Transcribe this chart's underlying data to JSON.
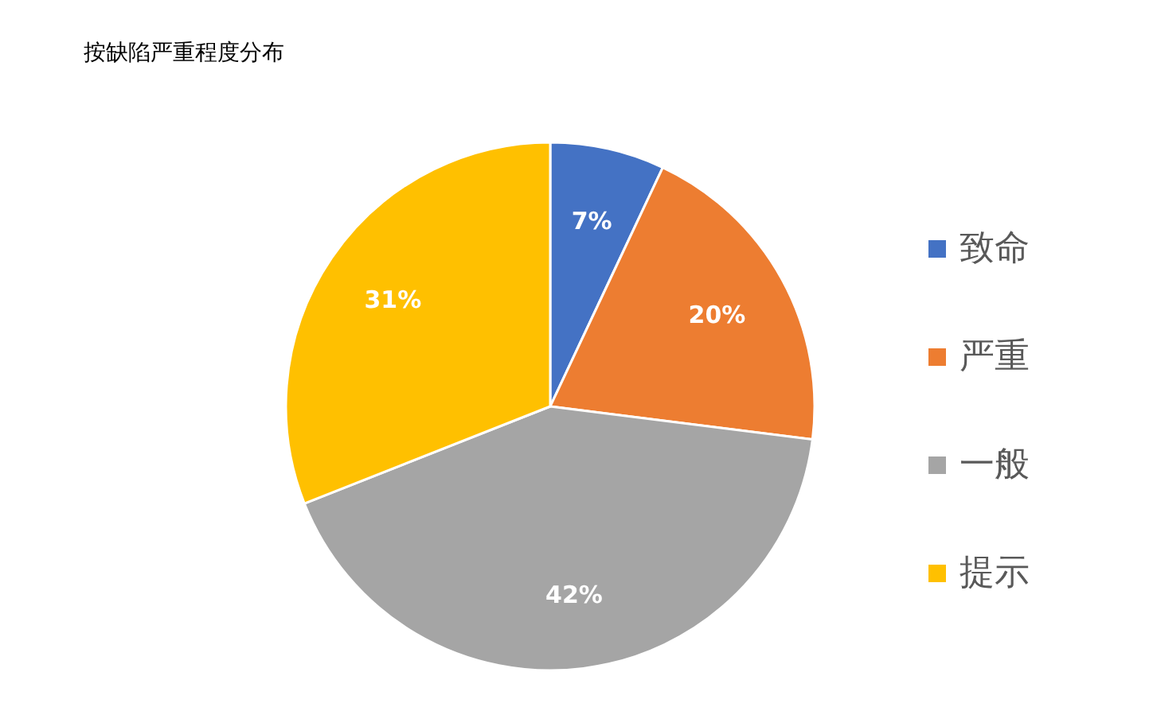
{
  "chart_data": {
    "type": "pie",
    "title": "按缺陷严重程度分布",
    "categories": [
      "致命",
      "严重",
      "一般",
      "提示"
    ],
    "values": [
      7,
      20,
      42,
      31
    ],
    "colors": [
      "#4472c4",
      "#ed7d31",
      "#a5a5a5",
      "#ffc000"
    ],
    "value_labels": [
      "7%",
      "20%",
      "42%",
      "31%"
    ],
    "legend": "right"
  }
}
